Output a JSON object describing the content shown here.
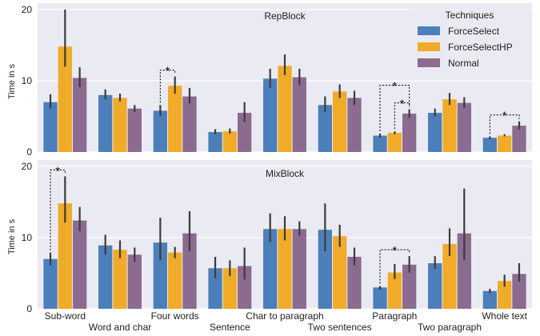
{
  "chart_data": {
    "type": "bar",
    "ylabel": "Time in s",
    "yticks": [
      0,
      10,
      20
    ],
    "ylim": [
      0,
      20
    ],
    "categories": [
      "Sub-word",
      "Word and char",
      "Four words",
      "Sentence",
      "Char to paragraph",
      "Two sentences",
      "Paragraph",
      "Two paragraph",
      "Whole text"
    ],
    "legend": {
      "title": "Techniques",
      "placement": "top-right",
      "entries": [
        "ForceSelect",
        "ForceSelectHP",
        "Normal"
      ]
    },
    "colors": {
      "ForceSelect": "#4c7fb9",
      "ForceSelectHP": "#f0ab29",
      "Normal": "#8b6b90",
      "panel_bg": "#eaeaf2",
      "error_bar": "#3c3c3c"
    },
    "panels": [
      {
        "title": "RepBlock",
        "series": [
          {
            "name": "ForceSelect",
            "values": [
              7.0,
              8.0,
              5.8,
              2.8,
              10.3,
              6.6,
              2.3,
              5.5,
              2.0
            ],
            "ci_low": [
              6.1,
              7.4,
              5.1,
              2.5,
              9.0,
              5.6,
              2.0,
              5.0,
              1.8
            ],
            "ci_high": [
              8.1,
              8.8,
              6.6,
              3.2,
              11.7,
              7.8,
              2.6,
              6.1,
              2.2
            ]
          },
          {
            "name": "ForceSelectHP",
            "values": [
              14.8,
              7.6,
              9.3,
              2.9,
              12.1,
              8.5,
              2.7,
              7.4,
              2.3
            ],
            "ci_low": [
              12.0,
              7.1,
              8.2,
              2.6,
              10.8,
              7.6,
              2.5,
              6.6,
              2.2
            ],
            "ci_high": [
              20.0,
              8.2,
              10.6,
              3.3,
              13.7,
              9.5,
              2.9,
              8.3,
              2.5
            ]
          },
          {
            "name": "Normal",
            "values": [
              10.4,
              6.1,
              7.8,
              5.5,
              10.5,
              7.6,
              5.4,
              6.9,
              3.7
            ],
            "ci_low": [
              9.1,
              5.6,
              6.8,
              4.2,
              9.4,
              6.6,
              4.8,
              6.2,
              3.2
            ],
            "ci_high": [
              11.9,
              6.6,
              9.0,
              7.0,
              11.7,
              8.6,
              6.0,
              7.7,
              4.3
            ]
          }
        ],
        "significance": [
          {
            "category": "Four words",
            "from": "ForceSelect",
            "to": "ForceSelectHP",
            "label": "*"
          },
          {
            "category": "Paragraph",
            "from": "ForceSelect",
            "to": "Normal",
            "label": "*"
          },
          {
            "category": "Paragraph",
            "from": "ForceSelectHP",
            "to": "Normal",
            "label": "*"
          },
          {
            "category": "Whole text",
            "from": "ForceSelect",
            "to": "Normal",
            "label": "*"
          }
        ]
      },
      {
        "title": "MixBlock",
        "series": [
          {
            "name": "ForceSelect",
            "values": [
              7.0,
              8.9,
              9.3,
              5.7,
              11.2,
              11.1,
              3.0,
              6.4,
              2.5
            ],
            "ci_low": [
              6.1,
              7.6,
              6.8,
              4.3,
              9.4,
              8.1,
              2.7,
              5.6,
              2.2
            ],
            "ci_high": [
              7.9,
              10.4,
              12.8,
              7.3,
              13.4,
              14.8,
              3.2,
              7.4,
              2.8
            ]
          },
          {
            "name": "ForceSelectHP",
            "values": [
              14.8,
              8.3,
              7.9,
              5.7,
              11.2,
              10.2,
              5.1,
              9.1,
              3.9
            ],
            "ci_low": [
              12.1,
              7.1,
              7.1,
              4.6,
              9.6,
              8.7,
              4.2,
              7.4,
              3.1
            ],
            "ci_high": [
              18.6,
              9.6,
              8.7,
              6.8,
              13.0,
              11.8,
              6.3,
              11.3,
              4.8
            ]
          },
          {
            "name": "Normal",
            "values": [
              12.4,
              7.6,
              10.6,
              6.0,
              11.2,
              7.3,
              6.2,
              10.6,
              4.9
            ],
            "ci_low": [
              10.9,
              6.6,
              8.1,
              4.1,
              10.3,
              6.1,
              5.1,
              6.8,
              3.8
            ],
            "ci_high": [
              14.3,
              8.6,
              13.7,
              8.6,
              12.3,
              8.6,
              7.4,
              16.9,
              6.4
            ]
          }
        ],
        "significance": [
          {
            "category": "Sub-word",
            "from": "ForceSelect",
            "to": "ForceSelectHP",
            "label": "*"
          },
          {
            "category": "Paragraph",
            "from": "ForceSelect",
            "to": "Normal",
            "label": "*"
          }
        ]
      }
    ]
  }
}
